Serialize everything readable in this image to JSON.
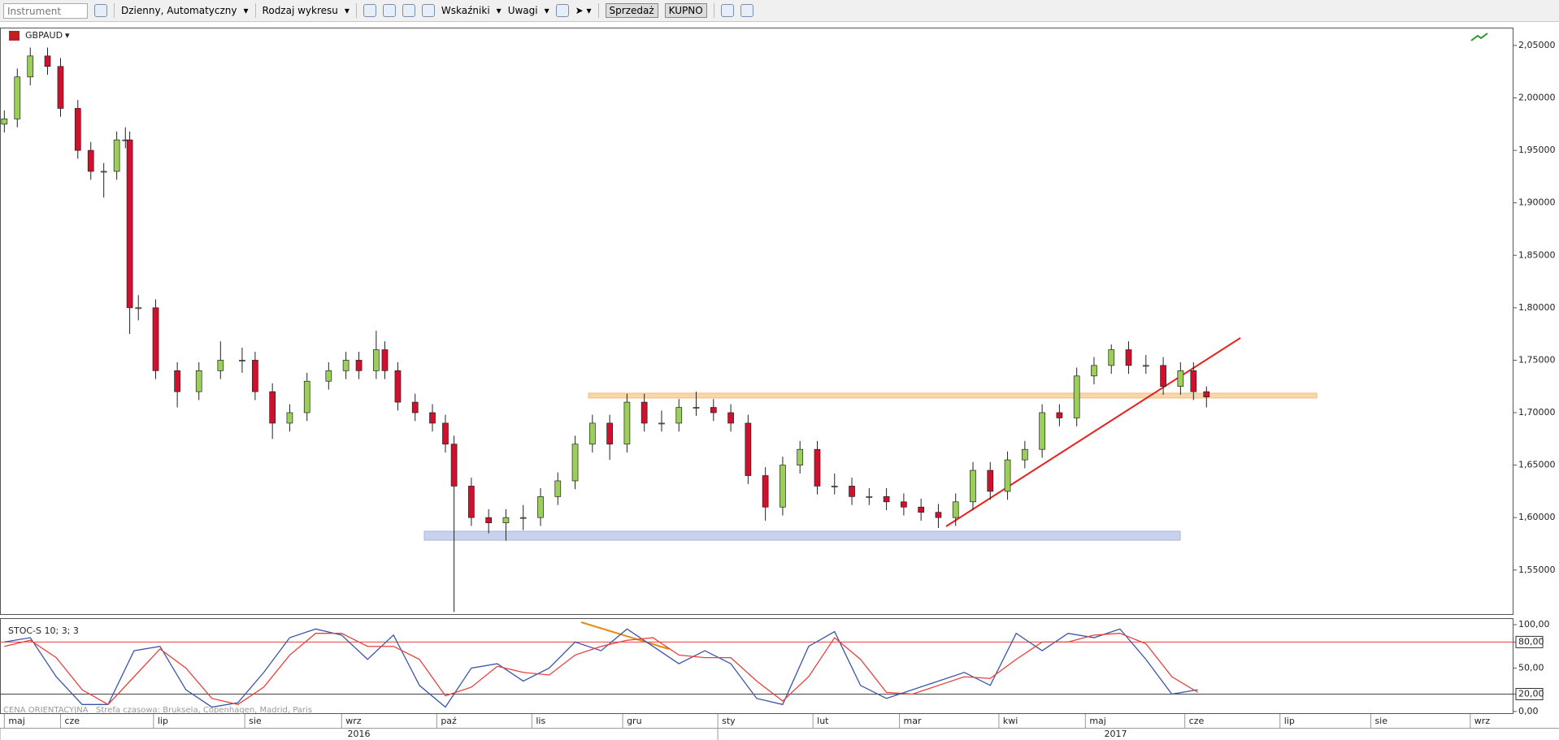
{
  "toolbar": {
    "instrument": "Instrument",
    "period": "Dzienny, Automatyczny",
    "chart_type": "Rodzaj wykresu",
    "indicators": "Wskaźniki",
    "notes": "Uwagi",
    "sell": "Sprzedaż",
    "buy": "KUPNO"
  },
  "chart_data": [
    {
      "type": "candlestick",
      "symbol": "GBPAUD",
      "up_color": "#9ccf5a",
      "down_color": "#d0102c",
      "x": [
        0,
        3,
        6,
        10,
        13,
        17,
        20,
        23,
        26,
        28,
        29,
        31,
        35,
        40,
        45,
        50,
        55,
        58,
        62,
        66,
        70,
        75,
        79,
        82,
        86,
        88,
        91,
        95,
        99,
        102,
        104,
        108,
        112,
        116,
        120,
        124,
        128,
        132,
        136,
        140,
        144,
        148,
        152,
        156,
        160,
        164,
        168,
        172,
        176,
        180,
        184,
        188,
        192,
        196,
        200,
        204,
        208,
        212,
        216,
        220,
        224,
        228,
        232,
        236,
        240,
        244,
        248,
        252,
        256,
        260,
        264,
        268,
        272,
        275,
        278
      ],
      "open": [
        1.975,
        1.98,
        2.02,
        2.04,
        2.03,
        1.99,
        1.95,
        1.93,
        1.93,
        1.96,
        1.96,
        1.8,
        1.8,
        1.74,
        1.72,
        1.74,
        1.75,
        1.75,
        1.72,
        1.69,
        1.7,
        1.73,
        1.74,
        1.75,
        1.74,
        1.76,
        1.74,
        1.71,
        1.7,
        1.69,
        1.67,
        1.63,
        1.6,
        1.595,
        1.6,
        1.6,
        1.62,
        1.635,
        1.67,
        1.69,
        1.67,
        1.71,
        1.69,
        1.69,
        1.705,
        1.705,
        1.7,
        1.69,
        1.64,
        1.61,
        1.65,
        1.665,
        1.63,
        1.63,
        1.62,
        1.62,
        1.615,
        1.61,
        1.605,
        1.6,
        1.615,
        1.645,
        1.625,
        1.655,
        1.665,
        1.7,
        1.695,
        1.735,
        1.745,
        1.76,
        1.745,
        1.745,
        1.725,
        1.74,
        1.72
      ],
      "high": [
        1.988,
        2.028,
        2.048,
        2.048,
        2.038,
        1.998,
        1.958,
        1.938,
        1.968,
        1.972,
        1.968,
        1.812,
        1.808,
        1.748,
        1.748,
        1.768,
        1.762,
        1.758,
        1.728,
        1.708,
        1.738,
        1.748,
        1.758,
        1.758,
        1.778,
        1.768,
        1.748,
        1.718,
        1.708,
        1.698,
        1.678,
        1.638,
        1.608,
        1.608,
        1.612,
        1.628,
        1.643,
        1.678,
        1.698,
        1.698,
        1.718,
        1.718,
        1.702,
        1.713,
        1.72,
        1.713,
        1.708,
        1.698,
        1.648,
        1.658,
        1.673,
        1.673,
        1.642,
        1.638,
        1.628,
        1.628,
        1.623,
        1.618,
        1.613,
        1.623,
        1.653,
        1.653,
        1.663,
        1.673,
        1.708,
        1.708,
        1.743,
        1.753,
        1.765,
        1.768,
        1.755,
        1.753,
        1.748,
        1.748,
        1.725
      ],
      "low": [
        1.967,
        1.972,
        2.012,
        2.022,
        1.982,
        1.942,
        1.922,
        1.905,
        1.922,
        1.952,
        1.775,
        1.788,
        1.732,
        1.705,
        1.712,
        1.732,
        1.738,
        1.712,
        1.675,
        1.682,
        1.692,
        1.722,
        1.732,
        1.732,
        1.732,
        1.732,
        1.702,
        1.692,
        1.682,
        1.662,
        1.51,
        1.592,
        1.585,
        1.578,
        1.588,
        1.592,
        1.612,
        1.627,
        1.662,
        1.655,
        1.662,
        1.682,
        1.682,
        1.682,
        1.697,
        1.692,
        1.682,
        1.632,
        1.597,
        1.602,
        1.642,
        1.622,
        1.622,
        1.612,
        1.612,
        1.607,
        1.602,
        1.597,
        1.59,
        1.592,
        1.607,
        1.617,
        1.617,
        1.647,
        1.657,
        1.687,
        1.687,
        1.727,
        1.737,
        1.737,
        1.737,
        1.717,
        1.717,
        1.712,
        1.705
      ],
      "close": [
        1.98,
        2.02,
        2.04,
        2.03,
        1.99,
        1.95,
        1.93,
        1.93,
        1.96,
        1.96,
        1.8,
        1.8,
        1.74,
        1.72,
        1.74,
        1.75,
        1.75,
        1.72,
        1.69,
        1.7,
        1.73,
        1.74,
        1.75,
        1.74,
        1.76,
        1.74,
        1.71,
        1.7,
        1.69,
        1.67,
        1.63,
        1.6,
        1.595,
        1.6,
        1.6,
        1.62,
        1.635,
        1.67,
        1.69,
        1.67,
        1.71,
        1.69,
        1.69,
        1.705,
        1.705,
        1.7,
        1.69,
        1.64,
        1.61,
        1.65,
        1.665,
        1.63,
        1.63,
        1.62,
        1.62,
        1.615,
        1.61,
        1.605,
        1.6,
        1.615,
        1.645,
        1.625,
        1.655,
        1.665,
        1.7,
        1.695,
        1.735,
        1.745,
        1.76,
        1.745,
        1.745,
        1.725,
        1.74,
        1.72,
        1.715
      ],
      "xlim": [
        -1,
        349
      ],
      "xticks": [
        {
          "value": 0,
          "label": "maj"
        },
        {
          "value": 13,
          "label": "cze"
        },
        {
          "value": 34.5,
          "label": "lip"
        },
        {
          "value": 55.6,
          "label": "sie"
        },
        {
          "value": 78,
          "label": "wrz"
        },
        {
          "value": 100,
          "label": "paź"
        },
        {
          "value": 122,
          "label": "lis"
        },
        {
          "value": 143,
          "label": "gru"
        },
        {
          "value": 165,
          "label": "sty"
        },
        {
          "value": 187,
          "label": "lut"
        },
        {
          "value": 207,
          "label": "mar"
        },
        {
          "value": 230,
          "label": "kwi"
        },
        {
          "value": 250,
          "label": "maj"
        },
        {
          "value": 273,
          "label": "cze"
        },
        {
          "value": 295,
          "label": "lip"
        },
        {
          "value": 316,
          "label": "sie"
        },
        {
          "value": 339,
          "label": "wrz"
        }
      ],
      "year_ticks": [
        {
          "value": -1,
          "label": "2016"
        },
        {
          "value": 165,
          "label": "2017"
        }
      ],
      "ylim": [
        1.508,
        2.067
      ],
      "yticks": [
        {
          "value": 2.05,
          "label": "2,05000"
        },
        {
          "value": 2.0,
          "label": "2,00000"
        },
        {
          "value": 1.95,
          "label": "1,95000"
        },
        {
          "value": 1.9,
          "label": "1,90000"
        },
        {
          "value": 1.85,
          "label": "1,85000"
        },
        {
          "value": 1.8,
          "label": "1,80000"
        },
        {
          "value": 1.75,
          "label": "1,75000"
        },
        {
          "value": 1.7,
          "label": "1,70000"
        },
        {
          "value": 1.65,
          "label": "1,65000"
        },
        {
          "value": 1.6,
          "label": "1,60000"
        },
        {
          "value": 1.55,
          "label": "1,55000"
        }
      ]
    },
    {
      "type": "line",
      "title": "STOC-S 10; 3; 3",
      "x": [
        0,
        6,
        12,
        18,
        24,
        30,
        36,
        42,
        48,
        54,
        60,
        66,
        72,
        78,
        84,
        90,
        96,
        102,
        108,
        114,
        120,
        126,
        132,
        138,
        144,
        150,
        156,
        162,
        168,
        174,
        180,
        186,
        192,
        198,
        204,
        210,
        216,
        222,
        228,
        234,
        240,
        246,
        252,
        258,
        264,
        270,
        276
      ],
      "series": [
        {
          "color": "#3a56a8",
          "values": [
            80,
            85,
            40,
            8,
            8,
            70,
            75,
            25,
            5,
            10,
            45,
            85,
            95,
            88,
            60,
            88,
            30,
            5,
            50,
            55,
            35,
            50,
            80,
            70,
            95,
            75,
            55,
            70,
            55,
            15,
            8,
            75,
            92,
            30,
            15,
            25,
            35,
            45,
            30,
            90,
            70,
            90,
            85,
            95,
            60,
            20,
            25
          ]
        },
        {
          "color": "#e8403c",
          "values": [
            75,
            82,
            62,
            25,
            8,
            40,
            72,
            50,
            15,
            8,
            28,
            65,
            90,
            90,
            75,
            75,
            60,
            18,
            28,
            52,
            45,
            42,
            65,
            75,
            82,
            85,
            65,
            62,
            62,
            35,
            12,
            40,
            85,
            60,
            22,
            20,
            30,
            40,
            38,
            60,
            80,
            80,
            88,
            90,
            78,
            40,
            22
          ]
        }
      ],
      "levels": [
        {
          "value": 80,
          "color": "#e8403c"
        },
        {
          "value": 20,
          "color": "#444444"
        }
      ],
      "ylim": [
        -2,
        107.5
      ],
      "yticks": [
        {
          "value": 100,
          "label": "100,00"
        },
        {
          "value": 80,
          "label": "80,00"
        },
        {
          "value": 50,
          "label": "50,00"
        },
        {
          "value": 20,
          "label": "20,00"
        },
        {
          "value": 0,
          "label": "0,00"
        }
      ]
    }
  ],
  "footer": {
    "price_note": "CENA ORIENTACYJNA",
    "timezone": "Strefa czasowa: Bruksela, Copenhagen, Madrid, Paris"
  }
}
